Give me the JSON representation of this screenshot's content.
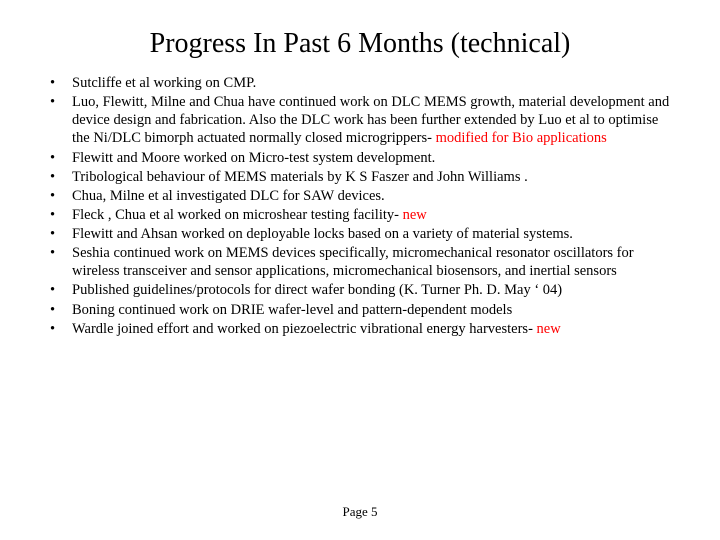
{
  "title": "Progress In Past 6 Months (technical)",
  "bullet_marker": "•",
  "items": [
    {
      "text": "Sutcliffe et al working on CMP."
    },
    {
      "text": "Luo, Flewitt, Milne and Chua have continued work on DLC MEMS growth, material development and device design and fabrication. Also the DLC work has been further extended by Luo et al to optimise the  Ni/DLC bimorph actuated normally closed microgrippers-",
      "suffix": " modified for Bio applications"
    },
    {
      "text": "Flewitt and Moore worked on Micro-test system development."
    },
    {
      "text": "Tribological behaviour of MEMS materials by K S Faszer and John Williams ."
    },
    {
      "text": "Chua, Milne et al investigated DLC for SAW devices."
    },
    {
      "text": "Fleck , Chua et al worked on microshear testing facility-",
      "suffix": " new"
    },
    {
      "text": "Flewitt and Ahsan worked on deployable locks based on a variety of material systems."
    },
    {
      "text": "Seshia continued work on MEMS devices specifically, micromechanical resonator oscillators for wireless transceiver and sensor applications, micromechanical biosensors, and inertial sensors"
    },
    {
      "text": "Published guidelines/protocols for direct wafer bonding (K. Turner Ph. D. May ‘ 04)"
    },
    {
      "text": "Boning continued work on DRIE wafer-level and pattern-dependent models"
    },
    {
      "text": "Wardle joined effort and worked on piezoelectric vibrational energy harvesters-",
      "suffix": " new"
    }
  ],
  "footer": "Page 5",
  "colors": {
    "text": "#000000",
    "highlight": "#ff0000",
    "background": "#ffffff"
  },
  "typography": {
    "title_fontsize": 28,
    "body_fontsize": 14.5,
    "footer_fontsize": 13,
    "font_family": "Times New Roman"
  }
}
